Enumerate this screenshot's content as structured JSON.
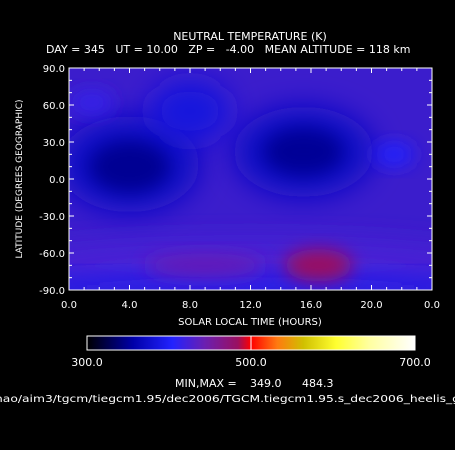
{
  "chart_data": {
    "type": "heatmap",
    "title": "NEUTRAL TEMPERATURE (K)",
    "subtitle": "DAY = 345   UT = 10.00   ZP =   -4.00   MEAN ALTITUDE = 118 km",
    "xlabel": "SOLAR LOCAL TIME (HOURS)",
    "ylabel": "LATITUDE (DEGREES GEOGRAPHIC)",
    "xlim": [
      0,
      24
    ],
    "ylim": [
      -90,
      90
    ],
    "x_ticks": [
      "0.0",
      "4.0",
      "8.0",
      "12.0",
      "16.0",
      "20.0",
      "0.0"
    ],
    "y_ticks": [
      "90.0",
      "60.0",
      "30.0",
      "0.0",
      "-30.0",
      "-60.0",
      "-90.0"
    ],
    "colorbar": {
      "min": 300.0,
      "max": 700.0,
      "labels": [
        "300.0",
        "500.0",
        "700.0"
      ]
    },
    "features": [
      {
        "label": "cold min",
        "lt": 4.0,
        "lat": 10,
        "value": 349
      },
      {
        "label": "cold min",
        "lt": 15.5,
        "lat": 22,
        "value": 350
      },
      {
        "label": "warm max",
        "lt": 16.5,
        "lat": -70,
        "value": 484
      },
      {
        "label": "warm band",
        "lt": 9.0,
        "lat": -70,
        "value": 440
      },
      {
        "label": "warm patch",
        "lt": 1.5,
        "lat": 62,
        "value": 415
      },
      {
        "label": "warm patch",
        "lt": 21.5,
        "lat": 20,
        "value": 405
      }
    ],
    "minmax_label": "MIN,MAX =",
    "min_value": "349.0",
    "max_value": "484.3"
  },
  "footer_path": "hao/aim3/tgcm/tiegcm1.95/dec2006/TGCM.tiegcm1.95.s_dec2006_heelis_g"
}
